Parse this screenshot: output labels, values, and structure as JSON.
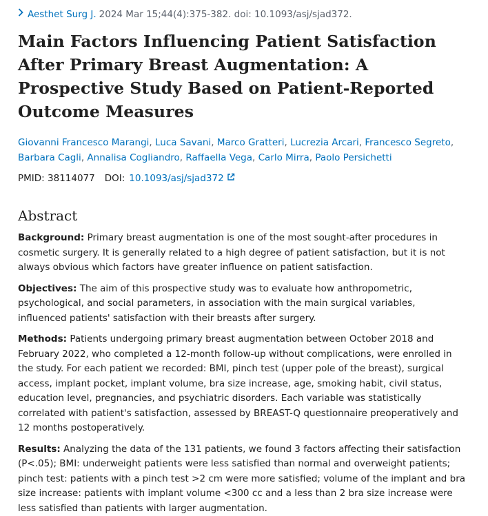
{
  "citation": {
    "journal": "Aesthet Surg J.",
    "details": "2024 Mar 15;44(4):375-382. doi: 10.1093/asj/sjad372."
  },
  "title": "Main Factors Influencing Patient Satisfaction After Primary Breast Augmentation: A Prospective Study Based on Patient-Reported Outcome Measures",
  "authors": [
    "Giovanni Francesco Marangi",
    "Luca Savani",
    "Marco Gratteri",
    "Lucrezia Arcari",
    "Francesco Segreto",
    "Barbara Cagli",
    "Annalisa Cogliandro",
    "Raffaella Vega",
    "Carlo Mirra",
    "Paolo Persichetti"
  ],
  "identifiers": {
    "pmid_label": "PMID:",
    "pmid": "38114077",
    "doi_label": "DOI:",
    "doi": "10.1093/asj/sjad372"
  },
  "abstract": {
    "heading": "Abstract",
    "sections": [
      {
        "label": "Background:",
        "text": "Primary breast augmentation is one of the most sought-after procedures in cosmetic surgery. It is generally related to a high degree of patient satisfaction, but it is not always obvious which factors have greater influence on patient satisfaction."
      },
      {
        "label": "Objectives:",
        "text": "The aim of this prospective study was to evaluate how anthropometric, psychological, and social parameters, in association with the main surgical variables, influenced patients' satisfaction with their breasts after surgery."
      },
      {
        "label": "Methods:",
        "text": "Patients undergoing primary breast augmentation between October 2018 and February 2022, who completed a 12-month follow-up without complications, were enrolled in the study. For each patient we recorded: BMI, pinch test (upper pole of the breast), surgical access, implant pocket, implant volume, bra size increase, age, smoking habit, civil status, education level, pregnancies, and psychiatric disorders. Each variable was statistically correlated with patient's satisfaction, assessed by BREAST-Q questionnaire preoperatively and 12 months postoperatively."
      },
      {
        "label": "Results:",
        "text": "Analyzing the data of the 131 patients, we found 3 factors affecting their satisfaction (P<.05); BMI: underweight patients were less satisfied than normal and overweight patients; pinch test: patients with a pinch test >2 cm were more satisfied; volume of the implant and bra size increase: patients with implant volume <300 cc and a less than 2 bra size increase were less satisfied than patients with larger augmentation."
      }
    ]
  },
  "colors": {
    "link": "#0071bc",
    "text": "#212121",
    "muted": "#5b616b"
  }
}
